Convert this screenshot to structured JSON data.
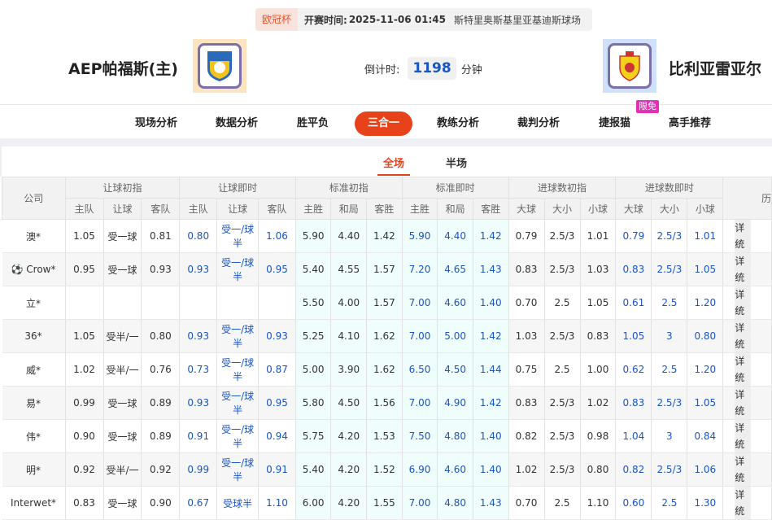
{
  "match": {
    "league": "欧冠杯",
    "time_label": "开赛时间:",
    "time": "2025-11-06 01:45",
    "venue": "斯特里奥斯基里亚基迪斯球场",
    "home": "AEP帕福斯(主)",
    "away": "比利亚雷亚尔",
    "countdown_label": "倒计时:",
    "countdown": "1198",
    "countdown_unit": "分钟"
  },
  "nav": {
    "items": [
      "现场分析",
      "数据分析",
      "胜平负",
      "三合一",
      "教练分析",
      "裁判分析",
      "捷报猫",
      "高手推荐"
    ],
    "active": "三合一",
    "badge": "限免"
  },
  "subtabs": {
    "items": [
      "全场",
      "半场"
    ],
    "active": "全场"
  },
  "table": {
    "groups": [
      "公司",
      "让球初指",
      "让球即时",
      "标准初指",
      "标准即时",
      "进球数初指",
      "进球数即时",
      "历"
    ],
    "subheaders": [
      "主队",
      "让球",
      "客队",
      "主队",
      "让球",
      "客队",
      "主胜",
      "和局",
      "客胜",
      "主胜",
      "和局",
      "客胜",
      "大球",
      "大小",
      "小球",
      "大球",
      "大小",
      "小球"
    ],
    "actions": [
      "详",
      "统"
    ],
    "rows": [
      [
        "澳*",
        "1.05",
        "受一球",
        "0.81",
        "0.80",
        "受一/球半",
        "1.06",
        "5.90",
        "4.40",
        "1.42",
        "5.90",
        "4.40",
        "1.42",
        "0.79",
        "2.5/3",
        "1.01",
        "0.79",
        "2.5/3",
        "1.01"
      ],
      [
        "Crow*",
        "0.95",
        "受一球",
        "0.93",
        "0.93",
        "受一/球半",
        "0.95",
        "5.40",
        "4.55",
        "1.57",
        "7.20",
        "4.65",
        "1.43",
        "0.83",
        "2.5/3",
        "1.03",
        "0.83",
        "2.5/3",
        "1.05"
      ],
      [
        "立*",
        "",
        "",
        "",
        "",
        "",
        "",
        "5.50",
        "4.00",
        "1.57",
        "7.00",
        "4.60",
        "1.40",
        "0.70",
        "2.5",
        "1.05",
        "0.61",
        "2.5",
        "1.20"
      ],
      [
        "36*",
        "1.05",
        "受半/一",
        "0.80",
        "0.93",
        "受一/球半",
        "0.93",
        "5.25",
        "4.10",
        "1.62",
        "7.00",
        "5.00",
        "1.42",
        "1.03",
        "2.5/3",
        "0.83",
        "1.05",
        "3",
        "0.80"
      ],
      [
        "威*",
        "1.02",
        "受半/一",
        "0.76",
        "0.73",
        "受一/球半",
        "0.87",
        "5.00",
        "3.90",
        "1.62",
        "6.50",
        "4.50",
        "1.44",
        "0.75",
        "2.5",
        "1.00",
        "0.62",
        "2.5",
        "1.20"
      ],
      [
        "易*",
        "0.99",
        "受一球",
        "0.89",
        "0.93",
        "受一/球半",
        "0.95",
        "5.80",
        "4.50",
        "1.56",
        "7.00",
        "4.90",
        "1.42",
        "0.83",
        "2.5/3",
        "1.02",
        "0.83",
        "2.5/3",
        "1.05"
      ],
      [
        "伟*",
        "0.90",
        "受一球",
        "0.89",
        "0.91",
        "受一/球半",
        "0.94",
        "5.75",
        "4.20",
        "1.53",
        "7.50",
        "4.80",
        "1.40",
        "0.82",
        "2.5/3",
        "0.98",
        "1.04",
        "3",
        "0.84"
      ],
      [
        "明*",
        "0.92",
        "受半/一",
        "0.92",
        "0.99",
        "受一/球半",
        "0.91",
        "5.40",
        "4.20",
        "1.52",
        "6.90",
        "4.60",
        "1.40",
        "1.02",
        "2.5/3",
        "0.80",
        "0.82",
        "2.5/3",
        "1.06"
      ],
      [
        "Interwet*",
        "0.83",
        "受一球",
        "0.90",
        "0.67",
        "受球半",
        "1.10",
        "6.00",
        "4.20",
        "1.55",
        "7.00",
        "4.80",
        "1.43",
        "0.70",
        "2.5",
        "1.10",
        "0.60",
        "2.5",
        "1.30"
      ]
    ]
  },
  "colors": {
    "accent": "#e8421a",
    "live_odds": "#1a55c4",
    "badge": "#e62fb8"
  }
}
